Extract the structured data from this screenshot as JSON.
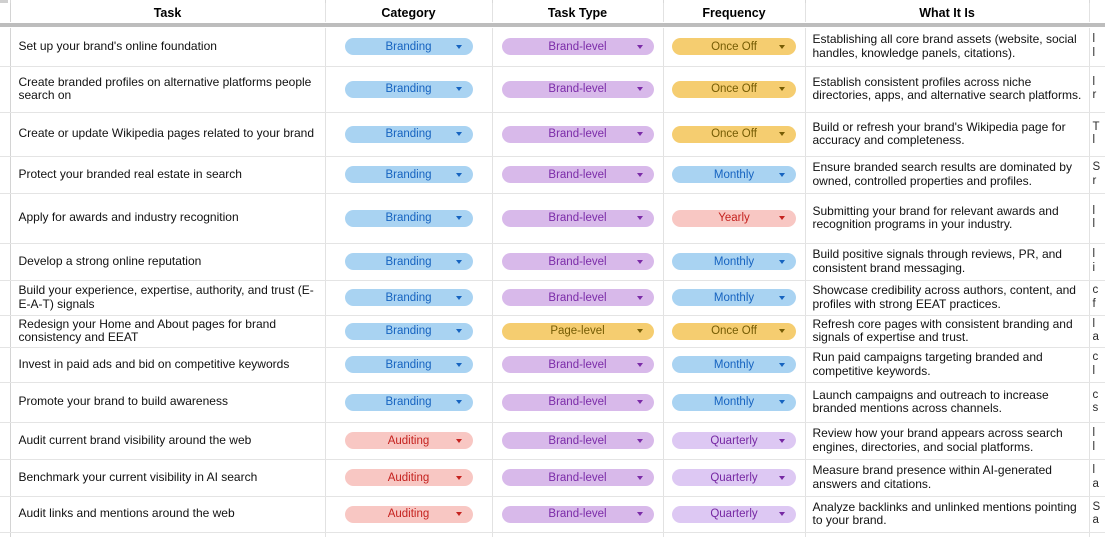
{
  "header": {
    "task": "Task",
    "category": "Category",
    "task_type": "Task Type",
    "frequency": "Frequency",
    "what_it_is": "What It Is"
  },
  "colors": {
    "chip_blue_bg": "#a9d3f2",
    "chip_blue_text": "#1663c0",
    "chip_purple_bg": "#d8b9ea",
    "chip_purple_text": "#7b2ba8",
    "chip_yellow_bg": "#f5cd70",
    "chip_yellow_text": "#755c04",
    "chip_red_bg": "#f8c7c3",
    "chip_red_text": "#c5221f",
    "chip_violet_bg": "#ddc8f3",
    "chip_violet_text": "#7627a3",
    "gridline": "#e2e2e2",
    "freeze_divider": "#bdbdbd"
  },
  "rows": [
    {
      "task": "Set up your brand's online foundation",
      "category": "Branding",
      "category_color": "blue",
      "task_type": "Brand-level",
      "task_type_color": "purple",
      "frequency": "Once Off",
      "frequency_color": "yellow",
      "what_it_is": "Establishing all core brand assets (website, social handles, knowledge panels, citations).",
      "edge": "l\nl"
    },
    {
      "task": "Create branded profiles on alternative platforms people search on",
      "category": "Branding",
      "category_color": "blue",
      "task_type": "Brand-level",
      "task_type_color": "purple",
      "frequency": "Once Off",
      "frequency_color": "yellow",
      "what_it_is": "Establish consistent profiles across niche directories, apps, and alternative search platforms.",
      "edge": "l\nr"
    },
    {
      "task": "Create or update Wikipedia pages related to your brand",
      "category": "Branding",
      "category_color": "blue",
      "task_type": "Brand-level",
      "task_type_color": "purple",
      "frequency": "Once Off",
      "frequency_color": "yellow",
      "what_it_is": "Build or refresh your brand's Wikipedia page for accuracy and completeness.",
      "edge": "T\nl"
    },
    {
      "task": "Protect your branded real estate in search",
      "category": "Branding",
      "category_color": "blue",
      "task_type": "Brand-level",
      "task_type_color": "purple",
      "frequency": "Monthly",
      "frequency_color": "blue",
      "what_it_is": "Ensure branded search results are dominated by owned, controlled properties and profiles.",
      "edge": "S\nr"
    },
    {
      "task": "Apply for awards and industry recognition",
      "category": "Branding",
      "category_color": "blue",
      "task_type": "Brand-level",
      "task_type_color": "purple",
      "frequency": "Yearly",
      "frequency_color": "red",
      "what_it_is": "Submitting your brand for relevant awards and recognition programs in your industry.",
      "edge": "l\nl"
    },
    {
      "task": "Develop a strong online reputation",
      "category": "Branding",
      "category_color": "blue",
      "task_type": "Brand-level",
      "task_type_color": "purple",
      "frequency": "Monthly",
      "frequency_color": "blue",
      "what_it_is": "Build positive signals through reviews, PR, and consistent brand messaging.",
      "edge": "l\ni"
    },
    {
      "task": "Build your experience, expertise, authority, and trust (E-E-A-T) signals",
      "category": "Branding",
      "category_color": "blue",
      "task_type": "Brand-level",
      "task_type_color": "purple",
      "frequency": "Monthly",
      "frequency_color": "blue",
      "what_it_is": "Showcase credibility across authors, content, and profiles with strong EEAT practices.",
      "edge": "c\nf"
    },
    {
      "task": "Redesign your Home and About pages for brand consistency and EEAT",
      "category": "Branding",
      "category_color": "blue",
      "task_type": "Page-level",
      "task_type_color": "yellow",
      "frequency": "Once Off",
      "frequency_color": "yellow",
      "what_it_is": "Refresh core pages with consistent branding and signals of expertise and trust.",
      "edge": "l\na"
    },
    {
      "task": "Invest in paid ads and bid on competitive keywords",
      "category": "Branding",
      "category_color": "blue",
      "task_type": "Brand-level",
      "task_type_color": "purple",
      "frequency": "Monthly",
      "frequency_color": "blue",
      "what_it_is": "Run paid campaigns targeting branded and competitive keywords.",
      "edge": "c\nl"
    },
    {
      "task": "Promote your brand to build awareness",
      "category": "Branding",
      "category_color": "blue",
      "task_type": "Brand-level",
      "task_type_color": "purple",
      "frequency": "Monthly",
      "frequency_color": "blue",
      "what_it_is": "Launch campaigns and outreach to increase branded mentions across channels.",
      "edge": "c\ns"
    },
    {
      "task": "Audit current brand visibility around the web",
      "category": "Auditing",
      "category_color": "red",
      "task_type": "Brand-level",
      "task_type_color": "purple",
      "frequency": "Quarterly",
      "frequency_color": "violet",
      "what_it_is": "Review how your brand appears across search engines, directories, and social platforms.",
      "edge": "l\nl"
    },
    {
      "task": "Benchmark your current visibility in AI search",
      "category": "Auditing",
      "category_color": "red",
      "task_type": "Brand-level",
      "task_type_color": "purple",
      "frequency": "Quarterly",
      "frequency_color": "violet",
      "what_it_is": "Measure brand presence within AI-generated answers and citations.",
      "edge": "l\na"
    },
    {
      "task": "Audit links and mentions around the web",
      "category": "Auditing",
      "category_color": "red",
      "task_type": "Brand-level",
      "task_type_color": "purple",
      "frequency": "Quarterly",
      "frequency_color": "violet",
      "what_it_is": "Analyze backlinks and unlinked mentions pointing to your brand.",
      "edge": "S\na"
    }
  ]
}
